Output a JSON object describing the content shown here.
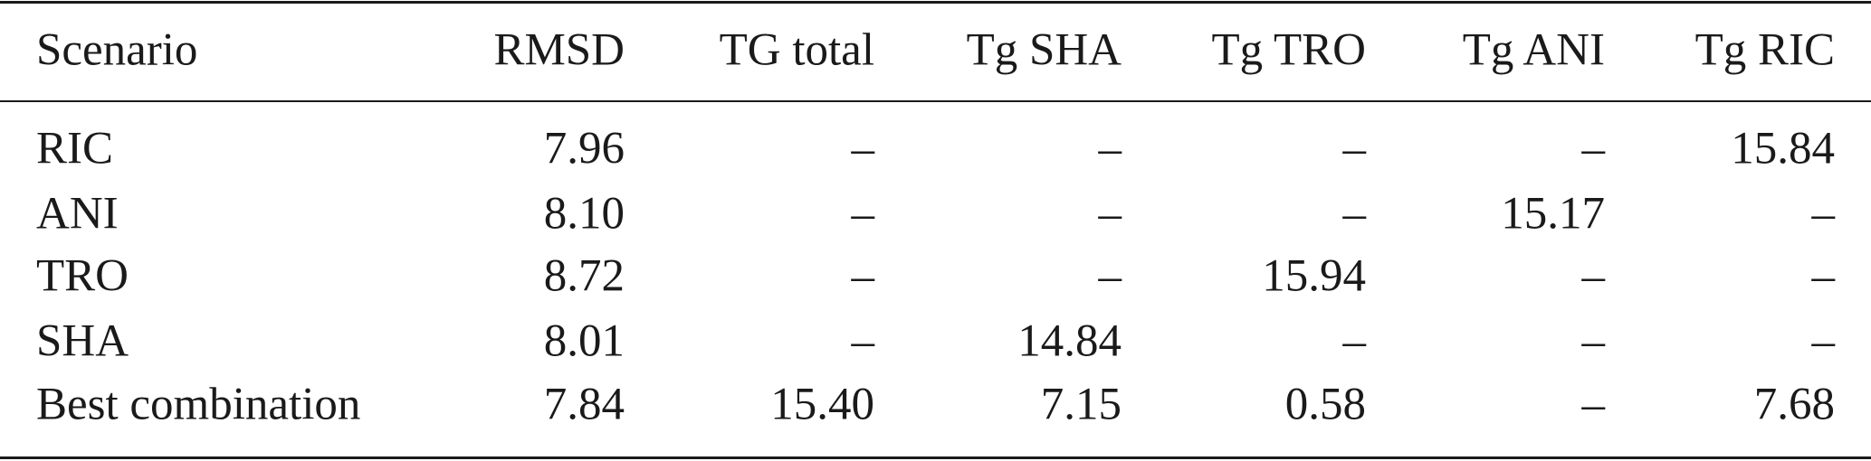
{
  "table": {
    "columns": [
      "Scenario",
      "RMSD",
      "TG total",
      "Tg SHA",
      "Tg TRO",
      "Tg ANI",
      "Tg RIC"
    ],
    "rows": [
      [
        "RIC",
        "7.96",
        "–",
        "–",
        "–",
        "–",
        "15.84"
      ],
      [
        "ANI",
        "8.10",
        "–",
        "–",
        "–",
        "15.17",
        "–"
      ],
      [
        "TRO",
        "8.72",
        "–",
        "–",
        "15.94",
        "–",
        "–"
      ],
      [
        "SHA",
        "8.01",
        "–",
        "14.84",
        "–",
        "–",
        "–"
      ],
      [
        "Best combination",
        "7.84",
        "15.40",
        "7.15",
        "0.58",
        "–",
        "7.68"
      ]
    ]
  }
}
